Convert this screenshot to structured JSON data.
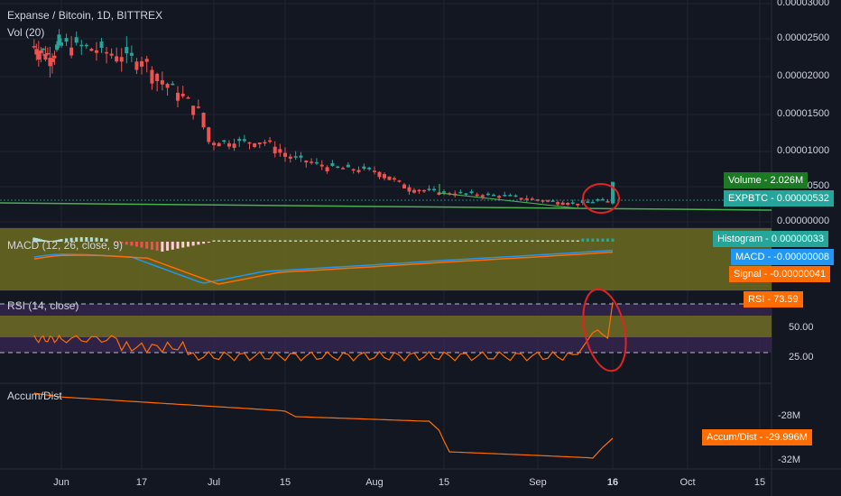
{
  "header": {
    "symbol_title": "Expanse / Bitcoin, 1D, BITTREX",
    "volume_indicator": "Vol (20)"
  },
  "panes": {
    "macd_label": "MACD (12, 26, close, 9)",
    "rsi_label": "RSI (14, close)",
    "accum_label": "Accum/Dist"
  },
  "price_axis": {
    "ticks": [
      "0.00003000",
      "0.00002500",
      "0.00002000",
      "0.00001500",
      "0.00001000",
      "0.00000500",
      "0.00000000"
    ]
  },
  "rsi_axis": {
    "ticks": [
      "50.00",
      "25.00"
    ]
  },
  "accum_axis": {
    "ticks": [
      "-28M",
      "-32M"
    ]
  },
  "time_axis": {
    "labels": [
      "Jun",
      "17",
      "Jul",
      "15",
      "Aug",
      "15",
      "Sep",
      "16",
      "Oct",
      "15"
    ]
  },
  "badges": {
    "volume": "Volume - 2.026M",
    "expbtc": "EXPBTC - 0.00000532",
    "histogram": "Histogram - 0.00000033",
    "macd": "MACD - -0.00000008",
    "signal": "Signal - -0.00000041",
    "rsi": "RSI - 73.59",
    "accum": "Accum/Dist - -29.996M"
  },
  "colors": {
    "background": "#131722",
    "up_candle": "#26a69a",
    "down_candle": "#ef5350",
    "trendline": "#4caf50",
    "macd_line": "#2196f3",
    "signal_line": "#ff6d00",
    "macd_fill": "#6b6b1f",
    "rsi_line": "#ff6d00",
    "rsi_band": "#3a2a55",
    "annotation": "#e52222",
    "accum_line": "#ff6d00"
  },
  "chart_data": {
    "type": "line",
    "series": [
      {
        "name": "EXPBTC",
        "x": [
          "Jun 1",
          "Jun 17",
          "Jun 25",
          "Jul 1",
          "Jul 15",
          "Aug 1",
          "Aug 15",
          "Sep 1",
          "Sep 12",
          "Sep 16"
        ],
        "values": [
          2.43e-05,
          2.22e-05,
          1.75e-05,
          1.07e-05,
          9.2e-06,
          7.5e-06,
          4e-06,
          3.1e-06,
          2.5e-06,
          5.3e-06
        ]
      },
      {
        "name": "RSI",
        "x": [
          "Jun 1",
          "Jun 17",
          "Jul 1",
          "Aug 1",
          "Sep 1",
          "Sep 12",
          "Sep 16"
        ],
        "values": [
          43,
          37,
          27,
          29,
          30,
          48,
          73.59
        ]
      },
      {
        "name": "Accum/Dist",
        "x": [
          "Jun 1",
          "Jul 15",
          "Aug 15",
          "Sep 12",
          "Sep 16"
        ],
        "values": [
          -26.3,
          -28.0,
          -29.0,
          -31.9,
          -29.996
        ]
      }
    ]
  }
}
